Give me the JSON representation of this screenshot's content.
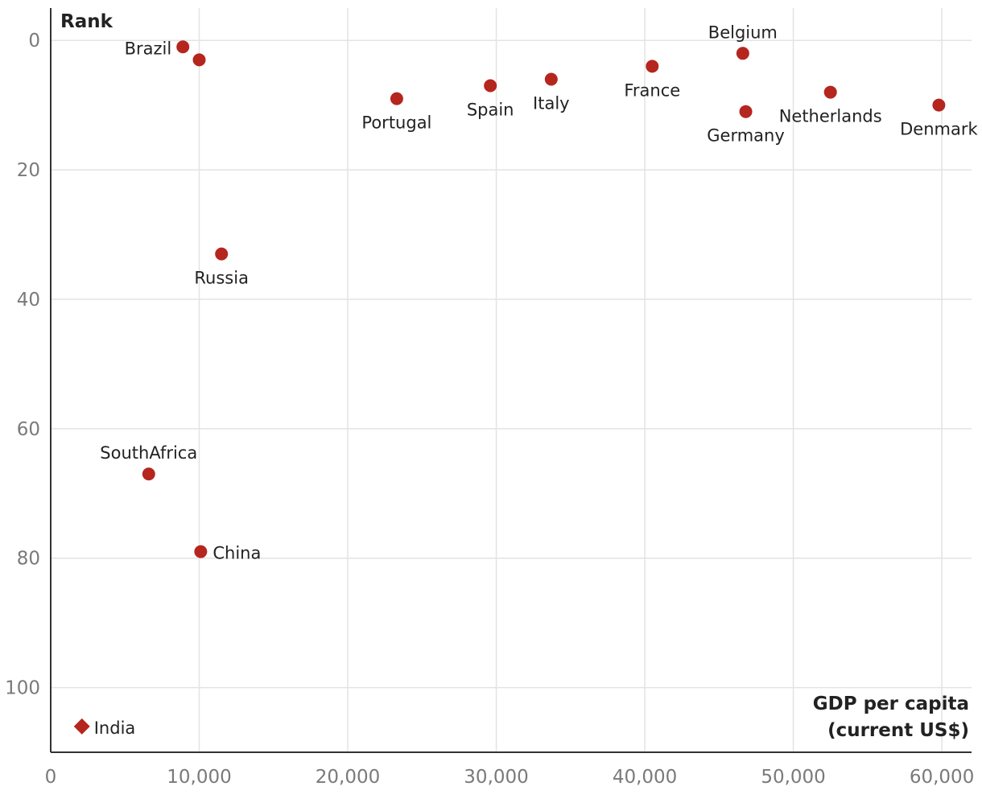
{
  "chart_data": {
    "type": "scatter",
    "xlabel_lines": [
      "GDP per capita",
      "(current US$)"
    ],
    "ylabel": "Rank",
    "xlim": [
      0,
      62000
    ],
    "ylim": [
      -5,
      110
    ],
    "y_inverted": true,
    "x_ticks": [
      0,
      10000,
      20000,
      30000,
      40000,
      50000,
      60000
    ],
    "x_tick_labels": [
      "0",
      "10,000",
      "20,000",
      "30,000",
      "40,000",
      "50,000",
      "60,000"
    ],
    "y_ticks": [
      0,
      20,
      40,
      60,
      80,
      100
    ],
    "y_tick_labels": [
      "0",
      "20",
      "40",
      "60",
      "80",
      "100"
    ],
    "grid": true,
    "marker_color": "#b5261e",
    "points": [
      {
        "label": "Brazil",
        "x": 8900,
        "y": 1,
        "marker": "circle",
        "label_pos": "left"
      },
      {
        "label": "",
        "x": 10000,
        "y": 3,
        "marker": "circle",
        "label_pos": "none"
      },
      {
        "label": "Portugal",
        "x": 23300,
        "y": 9,
        "marker": "circle",
        "label_pos": "below"
      },
      {
        "label": "Spain",
        "x": 29600,
        "y": 7,
        "marker": "circle",
        "label_pos": "below"
      },
      {
        "label": "Italy",
        "x": 33700,
        "y": 6,
        "marker": "circle",
        "label_pos": "below"
      },
      {
        "label": "France",
        "x": 40500,
        "y": 4,
        "marker": "circle",
        "label_pos": "below"
      },
      {
        "label": "Belgium",
        "x": 46600,
        "y": 2,
        "marker": "circle",
        "label_pos": "above"
      },
      {
        "label": "Germany",
        "x": 46800,
        "y": 11,
        "marker": "circle",
        "label_pos": "below"
      },
      {
        "label": "Netherlands",
        "x": 52500,
        "y": 8,
        "marker": "circle",
        "label_pos": "below"
      },
      {
        "label": "Denmark",
        "x": 59800,
        "y": 10,
        "marker": "circle",
        "label_pos": "below"
      },
      {
        "label": "Russia",
        "x": 11500,
        "y": 33,
        "marker": "circle",
        "label_pos": "below"
      },
      {
        "label": "SouthAfrica",
        "x": 6600,
        "y": 67,
        "marker": "circle",
        "label_pos": "above"
      },
      {
        "label": "China",
        "x": 10100,
        "y": 79,
        "marker": "circle",
        "label_pos": "right"
      },
      {
        "label": "India",
        "x": 2100,
        "y": 106,
        "marker": "diamond",
        "label_pos": "right"
      }
    ]
  }
}
